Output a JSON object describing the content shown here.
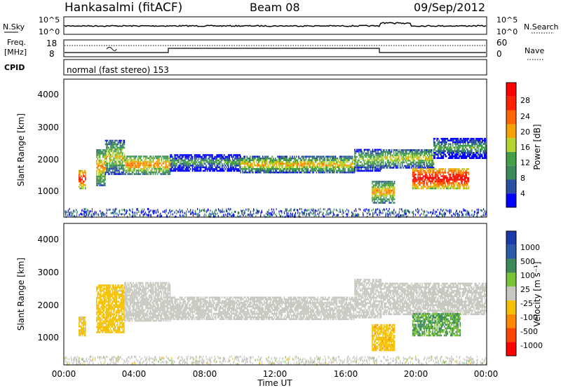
{
  "header": {
    "title": "Hankasalmi (fitACF)",
    "beam": "Beam 08",
    "date": "09/Sep/2012"
  },
  "noise_panel": {
    "left_label": "N.Sky",
    "right_label": "N.Search",
    "left_ticks": [
      "10^5",
      "10^0"
    ],
    "right_ticks": [
      "10^5",
      "10^0"
    ]
  },
  "freq_panel": {
    "left_label_1": "Freq.",
    "left_label_2": "[MHz]",
    "right_label": "Nave",
    "left_ticks": [
      "18",
      "8"
    ],
    "right_ticks": [
      "60",
      "0"
    ]
  },
  "cpid_panel": {
    "label": "CPID",
    "mode": "normal (fast stereo) 153"
  },
  "colors": {
    "power": [
      "#0000ff",
      "#2b4ea3",
      "#3c8a5a",
      "#43a047",
      "#b5d42e",
      "#f4a300",
      "#ff6600",
      "#ff2200",
      "#ff0000"
    ],
    "velocity": [
      "#ff0000",
      "#ff4400",
      "#ff8800",
      "#f4c000",
      "#c8c8c0",
      "#7bc43a",
      "#3c8a5a",
      "#2b5aa6",
      "#1a3aa8"
    ]
  },
  "chart_data": [
    {
      "type": "heatmap",
      "title": "Power",
      "colorbar_label": "Power [dB]",
      "colorbar_ticks": [
        "28",
        "24",
        "20",
        "16",
        "12",
        "8",
        "4"
      ],
      "clim": [
        0,
        30
      ],
      "xlabel": "",
      "ylabel": "Slant Range [km]",
      "yticks": [
        "4000",
        "3000",
        "2000",
        "1000"
      ],
      "ylim": [
        180,
        4500
      ],
      "xlim": [
        0,
        24
      ],
      "echo_regions": [
        {
          "t0": 0.8,
          "t1": 1.2,
          "r0": 1050,
          "r1": 1650,
          "p": 27
        },
        {
          "t0": 1.8,
          "t1": 2.3,
          "r0": 1150,
          "r1": 2300,
          "p": 20
        },
        {
          "t0": 2.3,
          "t1": 3.4,
          "r0": 1500,
          "r1": 2600,
          "p": 17
        },
        {
          "t0": 3.4,
          "t1": 6.0,
          "r0": 1500,
          "r1": 2100,
          "p": 21
        },
        {
          "t0": 6.0,
          "t1": 10.0,
          "r0": 1600,
          "r1": 2150,
          "p": 11
        },
        {
          "t0": 10.0,
          "t1": 16.5,
          "r0": 1550,
          "r1": 2050,
          "p": 19
        },
        {
          "t0": 16.5,
          "t1": 18.0,
          "r0": 1600,
          "r1": 2300,
          "p": 15
        },
        {
          "t0": 17.5,
          "t1": 18.8,
          "r0": 600,
          "r1": 1300,
          "p": 20
        },
        {
          "t0": 18.0,
          "t1": 21.0,
          "r0": 1700,
          "r1": 2300,
          "p": 17
        },
        {
          "t0": 19.8,
          "t1": 23.0,
          "r0": 1050,
          "r1": 1700,
          "p": 29
        },
        {
          "t0": 21.0,
          "t1": 24.0,
          "r0": 2000,
          "r1": 2650,
          "p": 12
        }
      ]
    },
    {
      "type": "heatmap",
      "title": "Velocity",
      "colorbar_label": "Velocity [m s⁻¹]",
      "colorbar_ticks": [
        "1000",
        "500",
        "100",
        "25",
        "-25",
        "-100",
        "-500",
        "-1000"
      ],
      "clim": [
        -1200,
        1200
      ],
      "xlabel": "Time UT",
      "ylabel": "Slant Range [km]",
      "yticks": [
        "4000",
        "3000",
        "2000",
        "1000"
      ],
      "xticks": [
        "00:00",
        "04:00",
        "08:00",
        "12:00",
        "16:00",
        "20:00",
        "00:00"
      ],
      "ylim": [
        180,
        4500
      ],
      "xlim": [
        0,
        24
      ],
      "echo_regions": [
        {
          "t0": 0.8,
          "t1": 1.2,
          "r0": 1050,
          "r1": 1650,
          "v": -200
        },
        {
          "t0": 1.8,
          "t1": 3.4,
          "r0": 1150,
          "r1": 2600,
          "v": -250
        },
        {
          "t0": 3.4,
          "t1": 6.0,
          "r0": 1500,
          "r1": 2700,
          "v": 0
        },
        {
          "t0": 6.0,
          "t1": 16.5,
          "r0": 1550,
          "r1": 2250,
          "v": 0
        },
        {
          "t0": 16.5,
          "t1": 18.0,
          "r0": 1600,
          "r1": 2800,
          "v": 0
        },
        {
          "t0": 17.5,
          "t1": 18.8,
          "r0": 600,
          "r1": 1400,
          "v": -300
        },
        {
          "t0": 18.0,
          "t1": 24.0,
          "r0": 1700,
          "r1": 2650,
          "v": 0
        },
        {
          "t0": 19.8,
          "t1": 22.5,
          "r0": 1050,
          "r1": 1750,
          "v": 400
        }
      ]
    }
  ]
}
